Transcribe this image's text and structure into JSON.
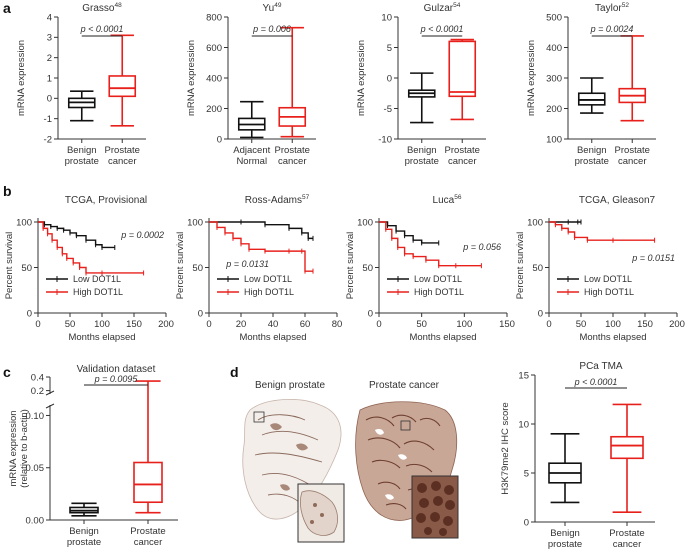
{
  "figure": {
    "panel_a_letter": "a",
    "panel_b_letter": "b",
    "panel_c_letter": "c",
    "panel_d_letter": "d"
  },
  "panel_a": [
    {
      "title": "Grasso",
      "sup": "48",
      "ylabel": "mRNA expression",
      "ylim": [
        -2,
        4
      ],
      "yticks": [
        "-2",
        "-1",
        "0",
        "1",
        "2",
        "3",
        "4"
      ],
      "ytick_values": [
        -2,
        -1,
        0,
        1,
        2,
        3,
        4
      ],
      "pvalue": "p < 0.0001",
      "groups": [
        {
          "label1": "Benign",
          "label2": "prostate",
          "color": "#111111",
          "whislo": -1.1,
          "q1": -0.45,
          "med": -0.2,
          "q3": 0.0,
          "whishi": 0.35
        },
        {
          "label1": "Prostate",
          "label2": "cancer",
          "color": "#e8201c",
          "whislo": -1.35,
          "q1": 0.1,
          "med": 0.5,
          "q3": 1.1,
          "whishi": 3.1
        }
      ]
    },
    {
      "title": "Yu",
      "sup": "49",
      "ylabel": "mRNA expression",
      "ylim": [
        0,
        800
      ],
      "yticks": [
        "0",
        "200",
        "400",
        "600",
        "800"
      ],
      "ytick_values": [
        0,
        200,
        400,
        600,
        800
      ],
      "pvalue": "p = 0.006",
      "groups": [
        {
          "label1": "Adjacent",
          "label2": "Normal",
          "color": "#111111",
          "whislo": 10,
          "q1": 60,
          "med": 95,
          "q3": 135,
          "whishi": 245
        },
        {
          "label1": "Prostate",
          "label2": "cancer",
          "color": "#e8201c",
          "whislo": 15,
          "q1": 85,
          "med": 145,
          "q3": 205,
          "whishi": 730
        }
      ]
    },
    {
      "title": "Gulzar",
      "sup": "54",
      "ylabel": "mRNA expression",
      "ylim": [
        -10,
        10
      ],
      "yticks": [
        "-10",
        "-5",
        "0",
        "5",
        "10"
      ],
      "ytick_values": [
        -10,
        -5,
        0,
        5,
        10
      ],
      "pvalue": "p < 0.0001",
      "groups": [
        {
          "label1": "Benign",
          "label2": "prostate",
          "color": "#111111",
          "whislo": -7.3,
          "q1": -3.1,
          "med": -2.5,
          "q3": -2.0,
          "whishi": 0.8
        },
        {
          "label1": "Prostate",
          "label2": "cancer",
          "color": "#e8201c",
          "whislo": -6.8,
          "q1": -3.0,
          "med": -2.3,
          "q3": 6.0,
          "whishi": 6.3
        }
      ]
    },
    {
      "title": "Taylor",
      "sup": "52",
      "ylabel": "mRNA expression",
      "ylim": [
        100,
        500
      ],
      "yticks": [
        "100",
        "200",
        "300",
        "400",
        "500"
      ],
      "ytick_values": [
        100,
        200,
        300,
        400,
        500
      ],
      "pvalue": "p = 0.0024",
      "groups": [
        {
          "label1": "Benign",
          "label2": "prostate",
          "color": "#111111",
          "whislo": 185,
          "q1": 212,
          "med": 228,
          "q3": 250,
          "whishi": 300
        },
        {
          "label1": "Prostate",
          "label2": "cancer",
          "color": "#e8201c",
          "whislo": 160,
          "q1": 220,
          "med": 242,
          "q3": 265,
          "whishi": 438
        }
      ]
    }
  ],
  "panel_b": {
    "ylabel": "Percent survival",
    "xlabel": "Months elapsed",
    "legend_low": "Low DOT1L",
    "legend_high": "High DOT1L",
    "plots": [
      {
        "title": "TCGA, Provisional",
        "sup": "",
        "xlim": [
          0,
          200
        ],
        "xticks": [
          "0",
          "50",
          "100",
          "150",
          "200"
        ],
        "xtick_values": [
          0,
          50,
          100,
          150,
          200
        ],
        "ylim": [
          0,
          100
        ],
        "yticks": [
          "0",
          "50",
          "100"
        ],
        "ytick_values": [
          0,
          50,
          100
        ],
        "pvalue": "p = 0.0002",
        "low": [
          [
            0,
            100
          ],
          [
            10,
            97
          ],
          [
            20,
            95
          ],
          [
            30,
            93
          ],
          [
            40,
            91
          ],
          [
            50,
            88
          ],
          [
            60,
            85
          ],
          [
            75,
            80
          ],
          [
            90,
            75
          ],
          [
            100,
            72
          ],
          [
            120,
            72
          ]
        ],
        "high": [
          [
            0,
            100
          ],
          [
            8,
            93
          ],
          [
            15,
            87
          ],
          [
            22,
            80
          ],
          [
            30,
            72
          ],
          [
            38,
            65
          ],
          [
            45,
            60
          ],
          [
            55,
            55
          ],
          [
            65,
            50
          ],
          [
            75,
            44
          ],
          [
            100,
            44
          ],
          [
            165,
            44
          ]
        ]
      },
      {
        "title": "Ross-Adams",
        "sup": "57",
        "xlim": [
          0,
          80
        ],
        "xticks": [
          "0",
          "20",
          "40",
          "60",
          "80"
        ],
        "xtick_values": [
          0,
          20,
          40,
          60,
          80
        ],
        "ylim": [
          0,
          100
        ],
        "yticks": [
          "0",
          "50",
          "100"
        ],
        "ytick_values": [
          0,
          50,
          100
        ],
        "pvalue": "p = 0.0131",
        "low": [
          [
            0,
            100
          ],
          [
            20,
            100
          ],
          [
            35,
            97
          ],
          [
            50,
            93
          ],
          [
            58,
            88
          ],
          [
            62,
            82
          ],
          [
            65,
            82
          ]
        ],
        "high": [
          [
            0,
            100
          ],
          [
            5,
            94
          ],
          [
            10,
            88
          ],
          [
            15,
            82
          ],
          [
            20,
            76
          ],
          [
            25,
            70
          ],
          [
            35,
            68
          ],
          [
            50,
            68
          ],
          [
            58,
            68
          ],
          [
            60,
            46
          ],
          [
            65,
            46
          ]
        ]
      },
      {
        "title": "Luca",
        "sup": "56",
        "xlim": [
          0,
          150
        ],
        "xticks": [
          "0",
          "50",
          "100",
          "150"
        ],
        "xtick_values": [
          0,
          50,
          100,
          150
        ],
        "ylim": [
          0,
          100
        ],
        "yticks": [
          "0",
          "50",
          "100"
        ],
        "ytick_values": [
          0,
          50,
          100
        ],
        "pvalue": "p = 0.056",
        "low": [
          [
            0,
            100
          ],
          [
            10,
            96
          ],
          [
            20,
            90
          ],
          [
            30,
            85
          ],
          [
            40,
            80
          ],
          [
            50,
            77
          ],
          [
            70,
            77
          ]
        ],
        "high": [
          [
            0,
            100
          ],
          [
            8,
            92
          ],
          [
            15,
            82
          ],
          [
            22,
            72
          ],
          [
            30,
            65
          ],
          [
            40,
            62
          ],
          [
            55,
            58
          ],
          [
            70,
            52
          ],
          [
            90,
            52
          ],
          [
            120,
            52
          ]
        ]
      },
      {
        "title": "TCGA, Gleason7",
        "sup": "",
        "xlim": [
          0,
          200
        ],
        "xticks": [
          "0",
          "50",
          "100",
          "150",
          "200"
        ],
        "xtick_values": [
          0,
          50,
          100,
          150,
          200
        ],
        "ylim": [
          0,
          100
        ],
        "yticks": [
          "0",
          "50",
          "100"
        ],
        "ytick_values": [
          0,
          50,
          100
        ],
        "pvalue": "p = 0.0151",
        "low": [
          [
            0,
            100
          ],
          [
            30,
            100
          ],
          [
            45,
            100
          ],
          [
            50,
            100
          ]
        ],
        "high": [
          [
            0,
            100
          ],
          [
            10,
            97
          ],
          [
            20,
            93
          ],
          [
            30,
            89
          ],
          [
            40,
            83
          ],
          [
            60,
            80
          ],
          [
            100,
            80
          ],
          [
            165,
            80
          ]
        ]
      }
    ]
  },
  "panel_c": {
    "title": "Validation dataset",
    "ylabel1": "mRNA expression",
    "ylabel2": "(relative to b-actin)",
    "yticks_low": [
      "0.00",
      "0.05",
      "0.10"
    ],
    "yticks_low_values": [
      0.0,
      0.05,
      0.1
    ],
    "yticks_high": [
      "0.2",
      "0.4"
    ],
    "yticks_high_values": [
      0.2,
      0.4
    ],
    "pvalue": "p = 0.0095",
    "groups": [
      {
        "label1": "Benign",
        "label2": "prostate",
        "color": "#111111",
        "whislo": 0.004,
        "q1": 0.007,
        "med": 0.009,
        "q3": 0.012,
        "whishi": 0.016
      },
      {
        "label1": "Prostate",
        "label2": "cancer",
        "color": "#e8201c",
        "whislo": 0.007,
        "q1": 0.017,
        "med": 0.034,
        "q3": 0.055,
        "whishi": 0.34
      }
    ]
  },
  "panel_d": {
    "image1_caption": "Benign prostate",
    "image2_caption": "Prostate cancer",
    "chart_title": "PCa TMA",
    "ylabel": "H3K79me2 IHC score",
    "ylim": [
      0,
      15
    ],
    "yticks": [
      "0",
      "5",
      "10",
      "15"
    ],
    "ytick_values": [
      0,
      5,
      10,
      15
    ],
    "pvalue": "p < 0.0001",
    "groups": [
      {
        "label1": "Benign",
        "label2": "prostate",
        "color": "#111111",
        "whislo": 2,
        "q1": 4,
        "med": 5,
        "q3": 6,
        "whishi": 9
      },
      {
        "label1": "Prostate",
        "label2": "cancer",
        "color": "#e8201c",
        "whislo": 1,
        "q1": 6.5,
        "med": 7.8,
        "q3": 8.7,
        "whishi": 12
      }
    ]
  },
  "chart_data": [
    {
      "type": "box",
      "title": "Grasso",
      "ylabel": "mRNA expression",
      "categories": [
        "Benign prostate",
        "Prostate cancer"
      ],
      "ylim": [
        -2,
        4
      ]
    },
    {
      "type": "box",
      "title": "Yu",
      "ylabel": "mRNA expression",
      "categories": [
        "Adjacent Normal",
        "Prostate cancer"
      ],
      "ylim": [
        0,
        800
      ]
    },
    {
      "type": "box",
      "title": "Gulzar",
      "ylabel": "mRNA expression",
      "categories": [
        "Benign prostate",
        "Prostate cancer"
      ],
      "ylim": [
        -10,
        10
      ]
    },
    {
      "type": "box",
      "title": "Taylor",
      "ylabel": "mRNA expression",
      "categories": [
        "Benign prostate",
        "Prostate cancer"
      ],
      "ylim": [
        100,
        500
      ]
    },
    {
      "type": "line",
      "title": "TCGA, Provisional",
      "xlabel": "Months elapsed",
      "ylabel": "Percent survival",
      "series": [
        {
          "name": "Low DOT1L"
        },
        {
          "name": "High DOT1L"
        }
      ]
    },
    {
      "type": "line",
      "title": "Ross-Adams",
      "xlabel": "Months elapsed",
      "ylabel": "Percent survival",
      "series": [
        {
          "name": "Low DOT1L"
        },
        {
          "name": "High DOT1L"
        }
      ]
    },
    {
      "type": "line",
      "title": "Luca",
      "xlabel": "Months elapsed",
      "ylabel": "Percent survival",
      "series": [
        {
          "name": "Low DOT1L"
        },
        {
          "name": "High DOT1L"
        }
      ]
    },
    {
      "type": "line",
      "title": "TCGA, Gleason7",
      "xlabel": "Months elapsed",
      "ylabel": "Percent survival",
      "series": [
        {
          "name": "Low DOT1L"
        },
        {
          "name": "High DOT1L"
        }
      ]
    },
    {
      "type": "box",
      "title": "Validation dataset",
      "ylabel": "mRNA expression (relative to b-actin)",
      "categories": [
        "Benign prostate",
        "Prostate cancer"
      ]
    },
    {
      "type": "box",
      "title": "PCa TMA",
      "ylabel": "H3K79me2 IHC score",
      "categories": [
        "Benign prostate",
        "Prostate cancer"
      ],
      "ylim": [
        0,
        15
      ]
    }
  ]
}
